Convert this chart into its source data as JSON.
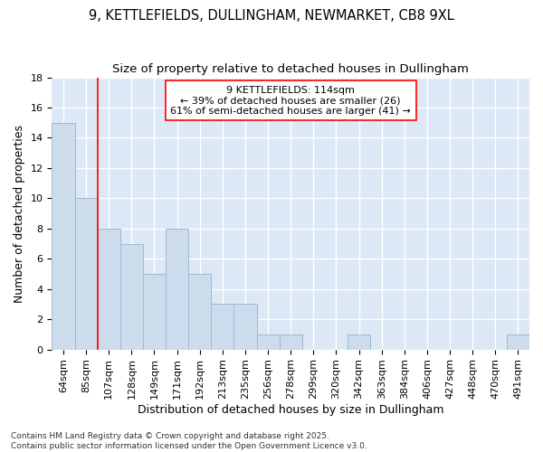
{
  "title_line1": "9, KETTLEFIELDS, DULLINGHAM, NEWMARKET, CB8 9XL",
  "title_line2": "Size of property relative to detached houses in Dullingham",
  "xlabel": "Distribution of detached houses by size in Dullingham",
  "ylabel": "Number of detached properties",
  "bar_color": "#ccdcec",
  "bar_edgecolor": "#a0b8d0",
  "background_color": "#dce8f5",
  "grid_color": "#ffffff",
  "categories": [
    "64sqm",
    "85sqm",
    "107sqm",
    "128sqm",
    "149sqm",
    "171sqm",
    "192sqm",
    "213sqm",
    "235sqm",
    "256sqm",
    "278sqm",
    "299sqm",
    "320sqm",
    "342sqm",
    "363sqm",
    "384sqm",
    "406sqm",
    "427sqm",
    "448sqm",
    "470sqm",
    "491sqm"
  ],
  "values": [
    15,
    10,
    8,
    7,
    5,
    8,
    5,
    3,
    3,
    1,
    1,
    0,
    0,
    1,
    0,
    0,
    0,
    0,
    0,
    0,
    1
  ],
  "ylim": [
    0,
    18
  ],
  "yticks": [
    0,
    2,
    4,
    6,
    8,
    10,
    12,
    14,
    16,
    18
  ],
  "red_line_x": 2.0,
  "annotation_text": "9 KETTLEFIELDS: 114sqm\n← 39% of detached houses are smaller (26)\n61% of semi-detached houses are larger (41) →",
  "footer_line1": "Contains HM Land Registry data © Crown copyright and database right 2025.",
  "footer_line2": "Contains public sector information licensed under the Open Government Licence v3.0.",
  "title_fontsize": 10.5,
  "subtitle_fontsize": 9.5,
  "axis_label_fontsize": 9,
  "tick_fontsize": 8,
  "annotation_fontsize": 8,
  "footer_fontsize": 6.5
}
